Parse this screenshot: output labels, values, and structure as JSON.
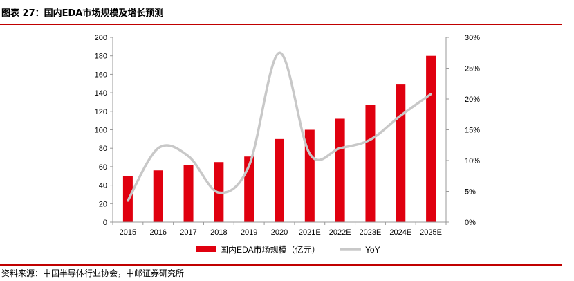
{
  "header": {
    "title": "图表 27：国内EDA市场规模及增长预测"
  },
  "footer": {
    "source": "资料来源：中国半导体行业协会，中邮证券研究所"
  },
  "colors": {
    "bar": "#e0000f",
    "line": "#c8c8c8",
    "rule": "#c00000",
    "axis": "#999999"
  },
  "chart_data": {
    "type": "bar",
    "categories": [
      "2015",
      "2016",
      "2017",
      "2018",
      "2019",
      "2020",
      "2021E",
      "2022E",
      "2023E",
      "2024E",
      "2025E"
    ],
    "series": [
      {
        "name": "国内EDA市场规模（亿元）",
        "type": "bar",
        "axis": "left",
        "values": [
          50,
          56,
          62,
          65,
          71,
          90,
          100,
          112,
          127,
          149,
          180
        ]
      },
      {
        "name": "YoY",
        "type": "line",
        "axis": "right",
        "smooth": true,
        "values": [
          3.5,
          12.0,
          10.7,
          4.8,
          9.2,
          27.5,
          11.1,
          12.0,
          13.4,
          17.3,
          20.8
        ]
      }
    ],
    "y_left": {
      "ylim": [
        0,
        200
      ],
      "ticks": [
        0,
        20,
        40,
        60,
        80,
        100,
        120,
        140,
        160,
        180,
        200
      ]
    },
    "y_right": {
      "ylim": [
        0,
        30
      ],
      "ticks": [
        "0%",
        "5%",
        "10%",
        "15%",
        "20%",
        "25%",
        "30%"
      ]
    },
    "grid": false,
    "legend": "bottom-center"
  }
}
